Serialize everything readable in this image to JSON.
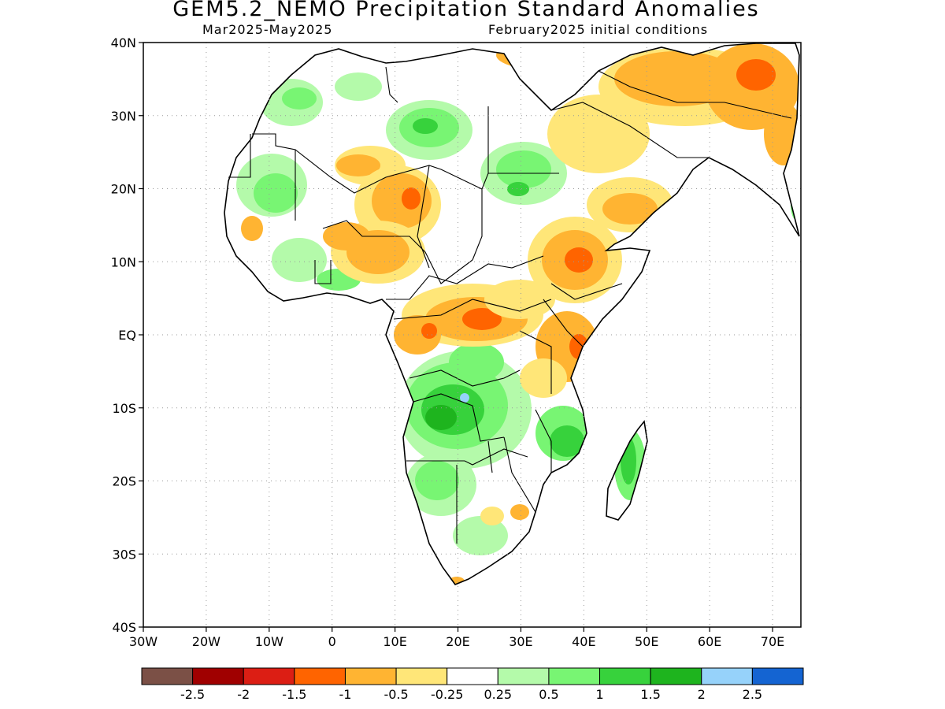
{
  "header": {
    "title": "GEM5.2_NEMO Precipitation Standard Anomalies",
    "period": "Mar2025-May2025",
    "init": "February2025 initial conditions"
  },
  "map": {
    "region": "Africa",
    "lat_labels": [
      "40N",
      "30N",
      "20N",
      "10N",
      "EQ",
      "10S",
      "20S",
      "30S",
      "40S"
    ],
    "lon_labels": [
      "30W",
      "20W",
      "10W",
      "0",
      "10E",
      "20E",
      "30E",
      "40E",
      "50E",
      "60E",
      "70E"
    ],
    "grid": "dotted"
  },
  "legend": {
    "colors": [
      "#7b5046",
      "#a00000",
      "#dc1e14",
      "#ff6400",
      "#ffb432",
      "#ffe678",
      "#ffffff",
      "#b4faaa",
      "#78f573",
      "#37d23c",
      "#1eb41e",
      "#96d2fa",
      "#1464d2"
    ],
    "labels": [
      "-2.5",
      "-2",
      "-1.5",
      "-1",
      "-0.5",
      "-0.25",
      "0.25",
      "0.5",
      "1",
      "1.5",
      "2",
      "2.5"
    ]
  }
}
